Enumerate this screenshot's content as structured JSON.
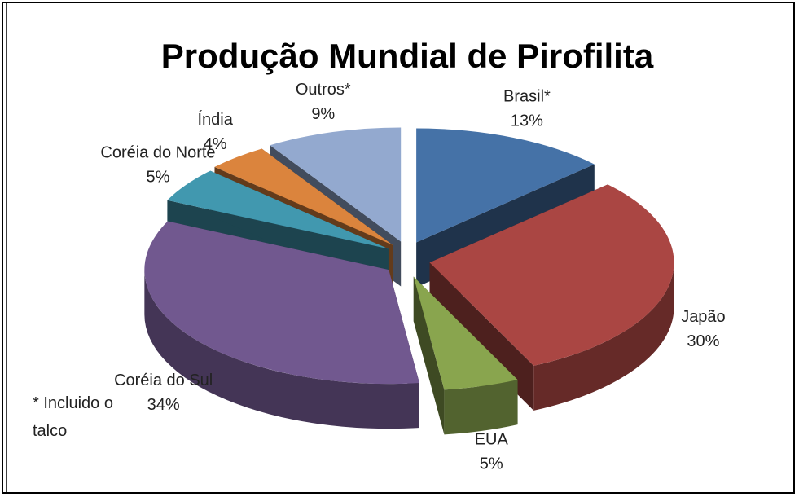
{
  "chart_data": {
    "type": "pie3d",
    "title": "Produção Mundial de Pirofilita",
    "categories": [
      "Brasil*",
      "Japão",
      "EUA",
      "Coréia do Sul",
      "Coréia do Norte",
      "Índia",
      "Outros*"
    ],
    "values": [
      13,
      30,
      5,
      34,
      5,
      4,
      9
    ],
    "value_labels": [
      "13%",
      "30%",
      "5%",
      "34%",
      "5%",
      "4%",
      "9%"
    ],
    "colors": [
      "#4572a7",
      "#aa4643",
      "#89a54e",
      "#71588f",
      "#4198af",
      "#db843d",
      "#93a9cf"
    ],
    "annotation": "* Incluido o talco"
  }
}
